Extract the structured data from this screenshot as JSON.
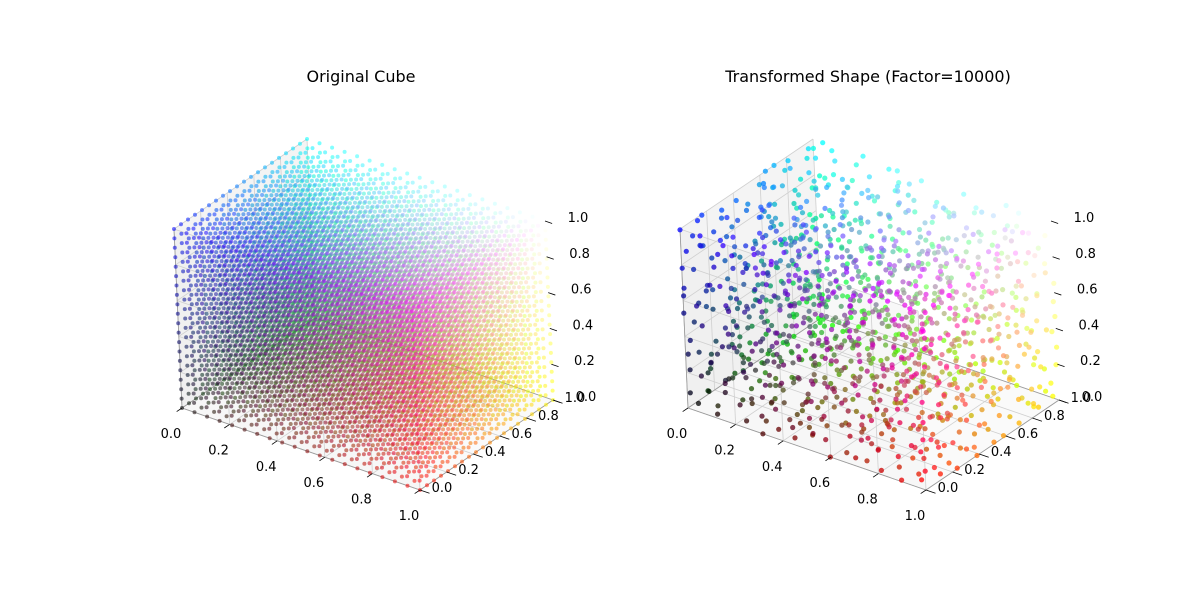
{
  "chart_data": [
    {
      "type": "scatter3d",
      "title": "Original Cube",
      "xlim": [
        0,
        1
      ],
      "ylim": [
        0,
        1
      ],
      "zlim": [
        0,
        1
      ],
      "x_ticks": [
        "0.0",
        "0.2",
        "0.4",
        "0.6",
        "0.8",
        "1.0"
      ],
      "y_ticks": [
        "0.0",
        "0.2",
        "0.4",
        "0.6",
        "0.8",
        "1.0"
      ],
      "z_ticks": [
        "0.0",
        "0.2",
        "0.4",
        "0.6",
        "0.8",
        "1.0"
      ],
      "grid": true,
      "points": "uniform grid over the unit cube, color = (r,g,b) = (x,y,z)",
      "grid_resolution": 20
    },
    {
      "type": "scatter3d",
      "title": "Transformed Shape (Factor=10000)",
      "xlim": [
        0,
        1
      ],
      "ylim": [
        0,
        1
      ],
      "zlim": [
        0,
        1
      ],
      "x_ticks": [
        "0.0",
        "0.2",
        "0.4",
        "0.6",
        "0.8",
        "1.0"
      ],
      "y_ticks": [
        "0.0",
        "0.2",
        "0.4",
        "0.6",
        "0.8",
        "1.0"
      ],
      "z_ticks": [
        "0.0",
        "0.2",
        "0.4",
        "0.6",
        "0.8",
        "1.0"
      ],
      "grid": true,
      "points": "same colored points, positions displaced (scattered) within the unit cube",
      "grid_resolution": 11
    }
  ]
}
